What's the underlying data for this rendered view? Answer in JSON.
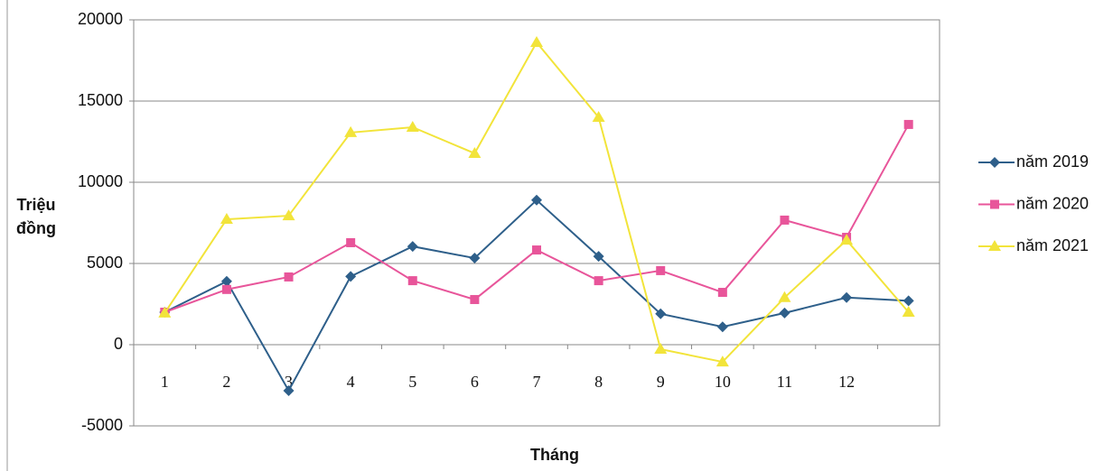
{
  "chart_data": {
    "type": "line",
    "y_label": [
      "Triệu",
      "đồng"
    ],
    "x_label": "Tháng",
    "categories": [
      "1",
      "2",
      "3",
      "4",
      "5",
      "6",
      "7",
      "8",
      "9",
      "10",
      "11",
      "12",
      null
    ],
    "series": [
      {
        "name": "năm 2019",
        "color": "#2e5f8a",
        "marker": "diamond",
        "values": [
          2000,
          3900,
          -2830,
          4200,
          6050,
          5330,
          8900,
          5440,
          1900,
          1100,
          1950,
          2900,
          2700
        ]
      },
      {
        "name": "năm 2020",
        "color": "#e8559a",
        "marker": "square",
        "values": [
          2000,
          3400,
          4170,
          6280,
          3940,
          2780,
          5830,
          3940,
          4560,
          3220,
          7670,
          6610,
          13560
        ]
      },
      {
        "name": "năm 2021",
        "color": "#f2e43a",
        "marker": "triangle",
        "values": [
          1950,
          7720,
          7940,
          13060,
          13390,
          11780,
          18610,
          14000,
          -280,
          -1060,
          2900,
          6440,
          2000
        ]
      }
    ],
    "ylim": [
      -5000,
      20000
    ],
    "yticks": [
      -5000,
      0,
      5000,
      10000,
      15000,
      20000
    ],
    "grid": true,
    "legend": "right"
  }
}
